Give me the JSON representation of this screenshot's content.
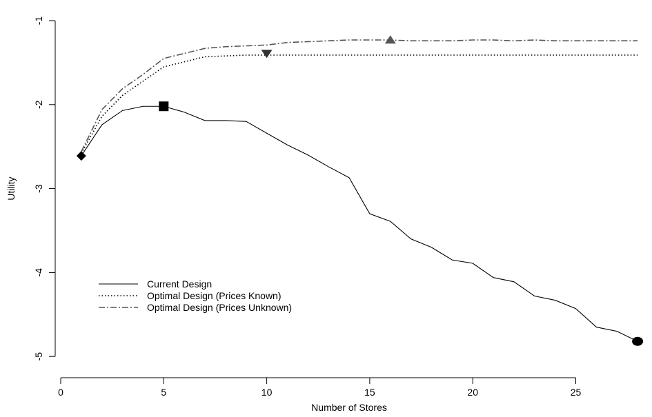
{
  "chart_data": {
    "type": "line",
    "title": "",
    "xlabel": "Number of Stores",
    "ylabel": "Utility",
    "xlim": [
      0,
      28.2
    ],
    "ylim": [
      -5.25,
      -0.85
    ],
    "xticks": [
      0,
      5,
      10,
      15,
      20,
      25
    ],
    "xtick_labels": [
      "0",
      "5",
      "10",
      "15",
      "20",
      "25"
    ],
    "yticks": [
      -1,
      -2,
      -3,
      -4,
      -5
    ],
    "ytick_labels": [
      "-1",
      "-2",
      "-3",
      "-4",
      "-5"
    ],
    "grid": false,
    "legend_position": "bottom-left",
    "series": [
      {
        "name": "Current Design",
        "line_style": "solid",
        "color": "#000000",
        "x": [
          1,
          2,
          3,
          4,
          5,
          6,
          7,
          8,
          9,
          10,
          11,
          12,
          13,
          14,
          15,
          16,
          17,
          18,
          19,
          20,
          21,
          22,
          23,
          24,
          25,
          26,
          27,
          28
        ],
        "values": [
          -2.61,
          -2.24,
          -2.07,
          -2.02,
          -2.02,
          -2.09,
          -2.19,
          -2.19,
          -2.2,
          -2.34,
          -2.48,
          -2.6,
          -2.74,
          -2.87,
          -3.3,
          -3.39,
          -3.6,
          -3.7,
          -3.85,
          -3.89,
          -4.06,
          -4.11,
          -4.28,
          -4.33,
          -4.43,
          -4.65,
          -4.7,
          -4.82
        ]
      },
      {
        "name": "Optimal Design (Prices Known)",
        "line_style": "dotted",
        "color": "#000000",
        "x": [
          1,
          2,
          3,
          4,
          5,
          6,
          7,
          8,
          9,
          10,
          11,
          12,
          13,
          14,
          15,
          16,
          17,
          18,
          19,
          20,
          21,
          22,
          23,
          24,
          25,
          26,
          27,
          28
        ],
        "values": [
          -2.58,
          -2.14,
          -1.89,
          -1.72,
          -1.55,
          -1.49,
          -1.43,
          -1.42,
          -1.41,
          -1.41,
          -1.41,
          -1.41,
          -1.41,
          -1.41,
          -1.41,
          -1.41,
          -1.41,
          -1.41,
          -1.41,
          -1.41,
          -1.41,
          -1.41,
          -1.41,
          -1.41,
          -1.41,
          -1.41,
          -1.41,
          -1.41
        ]
      },
      {
        "name": "Optimal Design (Prices Unknown)",
        "line_style": "dashdot",
        "color": "#555555",
        "x": [
          1,
          2,
          3,
          4,
          5,
          6,
          7,
          8,
          9,
          10,
          11,
          12,
          13,
          14,
          15,
          16,
          17,
          18,
          19,
          20,
          21,
          22,
          23,
          24,
          25,
          26,
          27,
          28
        ],
        "values": [
          -2.56,
          -2.06,
          -1.81,
          -1.64,
          -1.45,
          -1.39,
          -1.33,
          -1.31,
          -1.3,
          -1.29,
          -1.26,
          -1.25,
          -1.24,
          -1.23,
          -1.23,
          -1.23,
          -1.24,
          -1.24,
          -1.24,
          -1.23,
          -1.23,
          -1.24,
          -1.23,
          -1.24,
          -1.24,
          -1.24,
          -1.24,
          -1.24
        ]
      }
    ],
    "markers": [
      {
        "shape": "diamond",
        "x": 1,
        "y": -2.61,
        "color": "#000000"
      },
      {
        "shape": "square",
        "x": 5,
        "y": -2.02,
        "color": "#000000"
      },
      {
        "shape": "triangle-down",
        "x": 10,
        "y": -1.39,
        "color": "#333333"
      },
      {
        "shape": "triangle-up",
        "x": 16,
        "y": -1.23,
        "color": "#555555"
      },
      {
        "shape": "circle",
        "x": 28,
        "y": -4.82,
        "color": "#000000"
      }
    ]
  }
}
